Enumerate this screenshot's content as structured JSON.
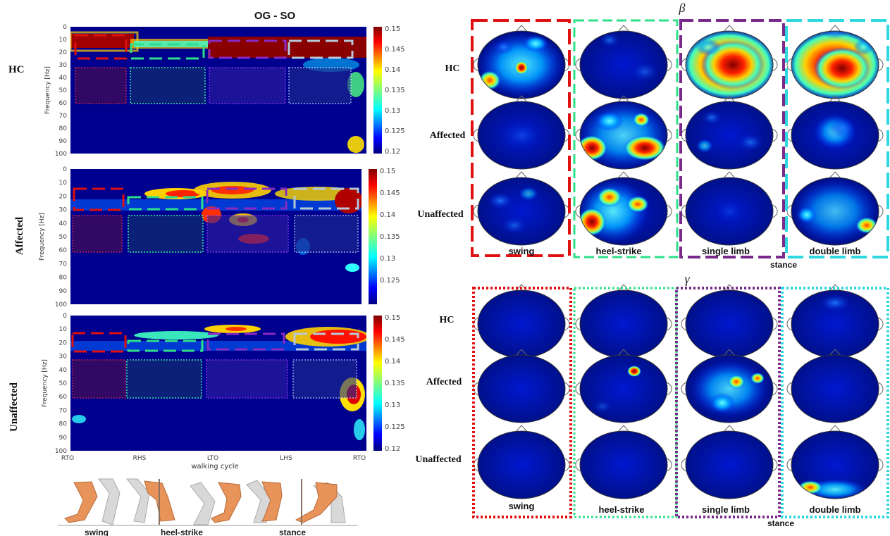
{
  "title": "OG - SO",
  "row_labels": [
    "HC",
    "Affected",
    "Unaffected"
  ],
  "spectrogram": {
    "ylabel": "Frequency [Hz]",
    "xlabel": "walking cycle",
    "freq_ticks": [
      "0",
      "10",
      "20",
      "30",
      "40",
      "50",
      "60",
      "70",
      "80",
      "90",
      "100"
    ],
    "x_ticks": [
      "RTO",
      "RHS",
      "LTO",
      "LHS",
      "RTO"
    ],
    "colorbar_ticks": [
      [
        "0.15",
        "0.145",
        "0.14",
        "0.135",
        "0.13",
        "0.125",
        "0.12"
      ],
      [
        "0.15",
        "0.145",
        "0.14",
        "0.135",
        "0.13",
        "0.125"
      ],
      [
        "0.15",
        "0.145",
        "0.14",
        "0.135",
        "0.13",
        "0.125",
        "0.12"
      ]
    ]
  },
  "gait_labels": [
    "swing",
    "heel-strike",
    "stance"
  ],
  "topo": {
    "beta_symbol": "β",
    "gamma_symbol": "γ",
    "phases": [
      "swing",
      "heel-strike",
      "single limb",
      "double limb"
    ],
    "stance_label": "stance",
    "phase_colors": [
      "#e01010",
      "#2ee08a",
      "#7a2a8a",
      "#2fd8e0"
    ]
  },
  "colormap": "jet"
}
